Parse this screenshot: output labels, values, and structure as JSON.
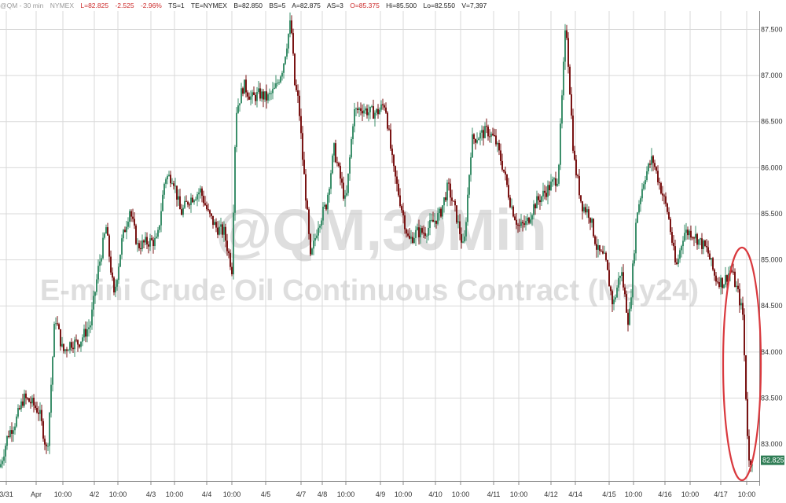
{
  "header": {
    "symbol": "@QM - 30 min",
    "exchange": "NYMEX",
    "last": "L=82.825",
    "change": "-2.525",
    "change_pct": "-2.96%",
    "ts": "TS=1",
    "te": "TE=NYMEX",
    "bid": "B=82.850",
    "bid_size": "BS=5",
    "ask": "A=82.875",
    "ask_size": "AS=3",
    "open": "O=85.375",
    "high": "Hi=85.500",
    "low": "Lo=82.550",
    "volume": "V=7,397"
  },
  "watermark": {
    "line1": "@QM,30Min",
    "line2": "E-mini Crude Oil Continuous Contract (May24)"
  },
  "colors": {
    "up": "#3c8f6b",
    "down": "#7a1414",
    "grid": "#d9d9d9",
    "highlight": "#d9393e",
    "last_label_bg": "#2f7d55"
  },
  "last_price_label": "82.825",
  "chart_data": {
    "type": "candlestick",
    "title": "",
    "ylim": [
      82.6,
      87.7
    ],
    "y_ticks": [
      83.0,
      83.5,
      84.0,
      84.5,
      85.0,
      85.5,
      86.0,
      86.5,
      87.0,
      87.5
    ],
    "y_tick_labels": [
      "83.000",
      "83.500",
      "84.000",
      "84.500",
      "85.000",
      "85.500",
      "86.000",
      "86.500",
      "87.000",
      "87.500"
    ],
    "x_tick_labels": [
      "3/31",
      "Apr",
      "10:00",
      "4/2",
      "10:00",
      "4/3",
      "10:00",
      "4/4",
      "10:00",
      "4/5",
      "4/7",
      "4/8",
      "10:00",
      "4/9",
      "10:00",
      "4/10",
      "10:00",
      "4/11",
      "10:00",
      "4/12",
      "4/14",
      "4/15",
      "10:00",
      "4/16",
      "10:00",
      "4/17",
      "10:00"
    ],
    "grid": true,
    "series": [
      {
        "name": "",
        "close_path": [
          [
            0,
            82.75
          ],
          [
            10,
            83.1
          ],
          [
            20,
            83.25
          ],
          [
            30,
            83.5
          ],
          [
            40,
            83.45
          ],
          [
            50,
            83.35
          ],
          [
            60,
            82.9
          ],
          [
            70,
            84.4
          ],
          [
            80,
            84.0
          ],
          [
            90,
            84.1
          ],
          [
            100,
            84.1
          ],
          [
            115,
            84.3
          ],
          [
            125,
            84.9
          ],
          [
            135,
            85.35
          ],
          [
            145,
            84.6
          ],
          [
            155,
            85.2
          ],
          [
            165,
            85.55
          ],
          [
            175,
            85.15
          ],
          [
            190,
            85.2
          ],
          [
            200,
            85.2
          ],
          [
            210,
            85.9
          ],
          [
            220,
            85.9
          ],
          [
            230,
            85.5
          ],
          [
            240,
            85.65
          ],
          [
            255,
            85.75
          ],
          [
            265,
            85.5
          ],
          [
            275,
            85.35
          ],
          [
            285,
            85.3
          ],
          [
            295,
            84.9
          ],
          [
            300,
            86.6
          ],
          [
            310,
            86.9
          ],
          [
            320,
            86.75
          ],
          [
            330,
            86.8
          ],
          [
            340,
            86.75
          ],
          [
            350,
            86.85
          ],
          [
            360,
            87.1
          ],
          [
            370,
            87.6
          ],
          [
            375,
            86.9
          ],
          [
            380,
            86.7
          ],
          [
            385,
            86.1
          ],
          [
            390,
            85.6
          ],
          [
            395,
            85.0
          ],
          [
            405,
            85.4
          ],
          [
            415,
            85.6
          ],
          [
            425,
            86.2
          ],
          [
            435,
            85.8
          ],
          [
            440,
            85.6
          ],
          [
            450,
            86.6
          ],
          [
            460,
            86.65
          ],
          [
            470,
            86.6
          ],
          [
            480,
            86.6
          ],
          [
            490,
            86.7
          ],
          [
            500,
            86.0
          ],
          [
            510,
            85.6
          ],
          [
            520,
            85.2
          ],
          [
            530,
            85.3
          ],
          [
            540,
            85.3
          ],
          [
            550,
            85.4
          ],
          [
            560,
            85.5
          ],
          [
            570,
            85.8
          ],
          [
            580,
            85.5
          ],
          [
            590,
            85.1
          ],
          [
            600,
            86.3
          ],
          [
            610,
            86.35
          ],
          [
            620,
            86.4
          ],
          [
            630,
            86.3
          ],
          [
            640,
            86.0
          ],
          [
            650,
            85.6
          ],
          [
            660,
            85.35
          ],
          [
            670,
            85.4
          ],
          [
            680,
            85.6
          ],
          [
            690,
            85.7
          ],
          [
            700,
            85.8
          ],
          [
            710,
            85.9
          ],
          [
            720,
            87.6
          ],
          [
            730,
            86.1
          ],
          [
            740,
            85.6
          ],
          [
            750,
            85.5
          ],
          [
            760,
            85.1
          ],
          [
            770,
            85.0
          ],
          [
            780,
            84.5
          ],
          [
            790,
            84.9
          ],
          [
            800,
            84.3
          ],
          [
            810,
            85.5
          ],
          [
            820,
            85.9
          ],
          [
            830,
            86.1
          ],
          [
            840,
            85.8
          ],
          [
            850,
            85.5
          ],
          [
            860,
            84.9
          ],
          [
            870,
            85.3
          ],
          [
            880,
            85.3
          ],
          [
            890,
            85.2
          ],
          [
            900,
            85.1
          ],
          [
            910,
            84.8
          ],
          [
            920,
            84.75
          ],
          [
            930,
            84.9
          ],
          [
            940,
            84.6
          ],
          [
            945,
            84.4
          ],
          [
            950,
            83.3
          ],
          [
            953,
            82.8
          ],
          [
            958,
            82.85
          ]
        ]
      }
    ],
    "annotations": [
      {
        "type": "ellipse",
        "text": "",
        "around": "final sell-off on 4/17"
      }
    ]
  }
}
